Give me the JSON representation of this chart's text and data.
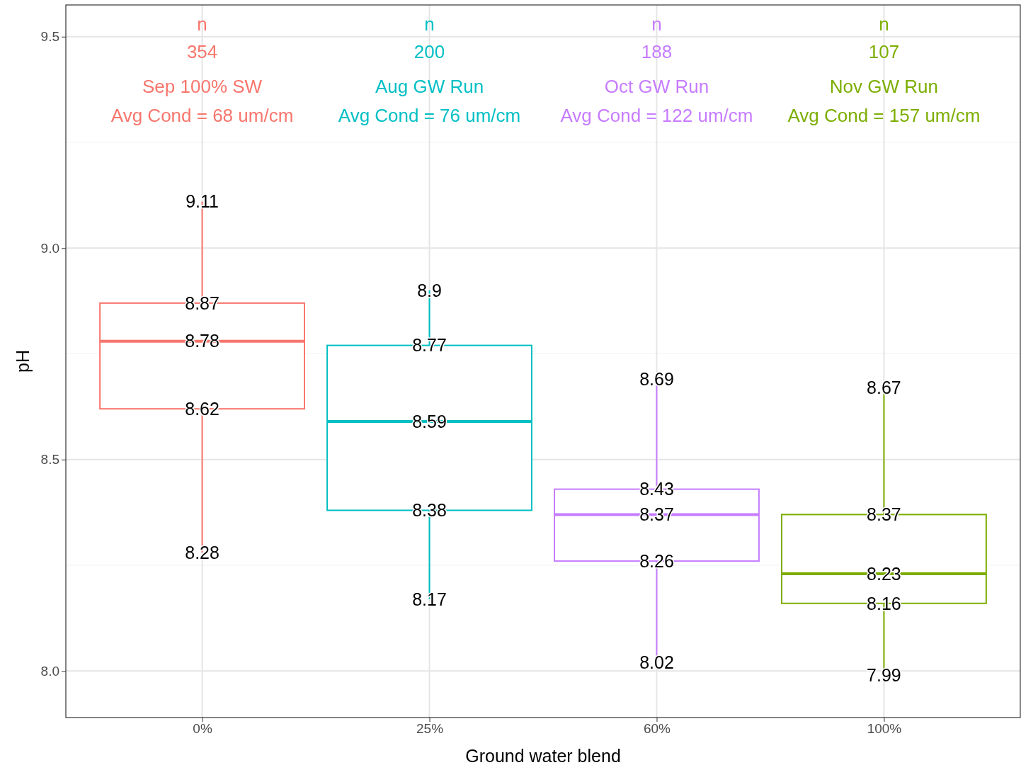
{
  "chart_data": {
    "type": "box",
    "xlabel": "Ground water blend",
    "ylabel": "pH",
    "categories": [
      "0%",
      "25%",
      "60%",
      "100%"
    ],
    "colors": [
      "#f8766d",
      "#00bfc4",
      "#c77cff",
      "#7cae00"
    ],
    "boxes": [
      {
        "low": 8.28,
        "q1": 8.62,
        "median": 8.78,
        "q3": 8.87,
        "high": 9.11
      },
      {
        "low": 8.17,
        "q1": 8.38,
        "median": 8.59,
        "q3": 8.77,
        "high": 8.9
      },
      {
        "low": 8.02,
        "q1": 8.26,
        "median": 8.37,
        "q3": 8.43,
        "high": 8.69
      },
      {
        "low": 7.99,
        "q1": 8.16,
        "median": 8.23,
        "q3": 8.37,
        "high": 8.67
      }
    ],
    "ylim": [
      7.89,
      9.575
    ],
    "yticks": [
      {
        "value": 8,
        "label": "8.0"
      },
      {
        "value": 8.5,
        "label": "8.5"
      },
      {
        "value": 9,
        "label": "9.0"
      },
      {
        "value": 9.5,
        "label": "9.5"
      }
    ],
    "grid": true,
    "annotations": [
      "n",
      "354",
      "Sep 100% SW",
      "Avg Cond = 68 um/cm",
      "n",
      "200",
      "Aug GW Run",
      "Avg Cond = 76 um/cm",
      "n",
      "188",
      "Oct GW Run",
      "Avg Cond = 122 um/cm",
      "n",
      "107",
      "Nov GW Run",
      "Avg Cond = 157 um/cm",
      {
        "text": "8.28",
        "x": "0%",
        "y": 8.28
      },
      {
        "text": "8.62",
        "x": "0%",
        "y": 8.62
      },
      {
        "text": "8.78",
        "x": "0%",
        "y": 8.78
      },
      {
        "text": "8.87",
        "x": "0%",
        "y": 8.87
      },
      {
        "text": "9.11",
        "x": "0%",
        "y": 9.11
      },
      {
        "text": "8.17",
        "x": "25%",
        "y": 8.17
      },
      {
        "text": "8.38",
        "x": "25%",
        "y": 8.38
      },
      {
        "text": "8.59",
        "x": "25%",
        "y": 8.59
      },
      {
        "text": "8.77",
        "x": "25%",
        "y": 8.77
      },
      {
        "text": "8.9",
        "x": "25%",
        "y": 8.9
      },
      {
        "text": "8.02",
        "x": "60%",
        "y": 8.02
      },
      {
        "text": "8.26",
        "x": "60%",
        "y": 8.26
      },
      {
        "text": "8.37",
        "x": "60%",
        "y": 8.37
      },
      {
        "text": "8.43",
        "x": "60%",
        "y": 8.43
      },
      {
        "text": "8.69",
        "x": "60%",
        "y": 8.69
      },
      {
        "text": "7.99",
        "x": "100%",
        "y": 7.99
      },
      {
        "text": "8.16",
        "x": "100%",
        "y": 8.16
      },
      {
        "text": "8.23",
        "x": "100%",
        "y": 8.23
      },
      {
        "text": "8.37",
        "x": "100%",
        "y": 8.37
      },
      {
        "text": "8.67",
        "x": "100%",
        "y": 8.67
      }
    ]
  }
}
